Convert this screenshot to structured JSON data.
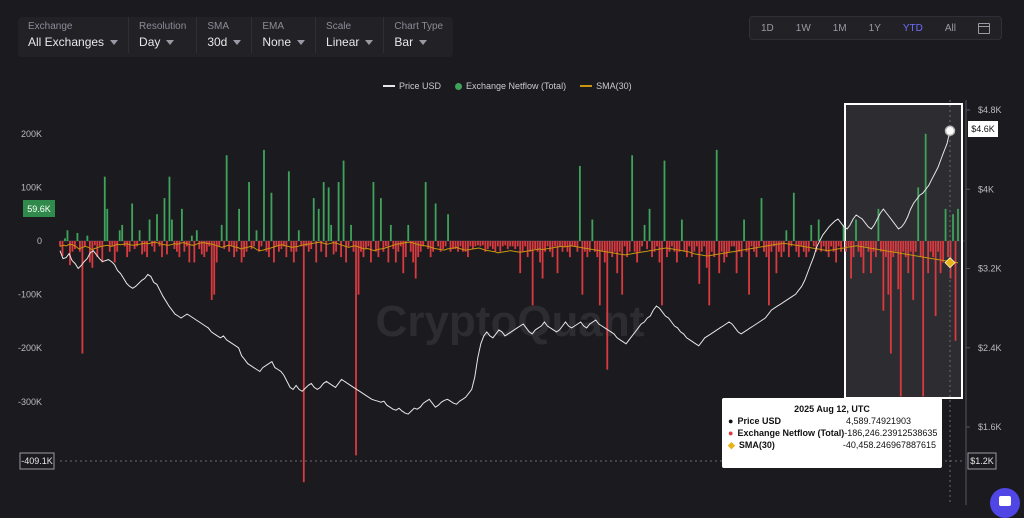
{
  "toolbar": {
    "controls": [
      {
        "label": "Exchange",
        "value": "All Exchanges"
      },
      {
        "label": "Resolution",
        "value": "Day"
      },
      {
        "label": "SMA",
        "value": "30d"
      },
      {
        "label": "EMA",
        "value": "None"
      },
      {
        "label": "Scale",
        "value": "Linear"
      },
      {
        "label": "Chart Type",
        "value": "Bar"
      }
    ],
    "ranges": [
      "1D",
      "1W",
      "1M",
      "1Y",
      "YTD",
      "All"
    ],
    "active_range": "YTD"
  },
  "legend": {
    "price": "Price USD",
    "netflow": "Exchange Netflow (Total)",
    "sma": "SMA(30)"
  },
  "watermark": "CryptoQuant",
  "colors": {
    "price": "#e6e6e6",
    "inflow": "#3fa35b",
    "outflow": "#d93a3f",
    "sma": "#c9950f",
    "background": "#1b1b1f",
    "active": "#6f6cff"
  },
  "tooltip": {
    "date": "2025 Aug 12, UTC",
    "rows": [
      {
        "name": "Price USD",
        "value": "4,589.74921903"
      },
      {
        "name": "Exchange Netflow (Total)",
        "value": "-186,246.23912538635"
      },
      {
        "name": "SMA(30)",
        "value": "-40,458.246967887615"
      }
    ]
  },
  "chart_data": {
    "type": "bar",
    "left_axis": {
      "ticks": [
        "200K",
        "100K",
        "0",
        "-100K",
        "-200K",
        "-300K"
      ],
      "tick_values": [
        200000,
        100000,
        0,
        -100000,
        -200000,
        -300000
      ],
      "range": [
        -460000,
        240000
      ]
    },
    "right_axis": {
      "ticks": [
        "$4.8K",
        "$4K",
        "$3.2K",
        "$2.4K",
        "$1.6K"
      ],
      "tick_values": [
        4800,
        4000,
        3200,
        2400,
        1600
      ],
      "range": [
        1150,
        4800
      ]
    },
    "crosshair_labels": {
      "left_value": "59.6K",
      "left_bottom": "-409.1K",
      "right_top": "$4.6K",
      "right_bottom": "$1.2K"
    },
    "netflow": [
      -10000,
      -28000,
      5000,
      20000,
      -45000,
      -20000,
      -15000,
      15000,
      -20000,
      -210000,
      -10000,
      10000,
      -40000,
      -50000,
      -8000,
      -30000,
      -10000,
      -40000,
      120000,
      60000,
      -20000,
      -10000,
      -40000,
      -20000,
      20000,
      30000,
      -10000,
      -30000,
      -20000,
      70000,
      -15000,
      -10000,
      20000,
      -25000,
      -20000,
      -30000,
      40000,
      -10000,
      -20000,
      50000,
      -10000,
      -30000,
      80000,
      -25000,
      120000,
      40000,
      -15000,
      -20000,
      -30000,
      60000,
      -20000,
      -10000,
      -40000,
      10000,
      -40000,
      20000,
      -15000,
      -25000,
      -30000,
      -20000,
      -10000,
      -110000,
      -100000,
      -40000,
      -10000,
      30000,
      -15000,
      160000,
      -20000,
      -10000,
      -30000,
      -20000,
      60000,
      -40000,
      -30000,
      -20000,
      110000,
      -15000,
      -10000,
      20000,
      -20000,
      -10000,
      170000,
      -20000,
      -30000,
      90000,
      -40000,
      -10000,
      -20000,
      -15000,
      -10000,
      -30000,
      130000,
      -20000,
      -40000,
      -20000,
      20000,
      -10000,
      -450000,
      -10000,
      -20000,
      -15000,
      80000,
      -40000,
      60000,
      -20000,
      110000,
      -30000,
      100000,
      30000,
      -25000,
      -20000,
      110000,
      -30000,
      150000,
      -40000,
      -10000,
      30000,
      -20000,
      -400000,
      -100000,
      -20000,
      -30000,
      -15000,
      -10000,
      -40000,
      110000,
      -20000,
      -30000,
      80000,
      -20000,
      -10000,
      -40000,
      30000,
      -15000,
      -40000,
      -20000,
      -10000,
      -60000,
      -30000,
      30000,
      -20000,
      -40000,
      -70000,
      -30000,
      -20000,
      -10000,
      110000,
      -15000,
      -30000,
      -20000,
      70000,
      -10000,
      -20000,
      -15000,
      -10000,
      50000,
      -20000,
      -15000,
      -15000,
      -20000,
      -10000,
      -20000,
      -20000,
      -30000,
      -10000,
      -15000,
      -10000,
      -8000,
      -10000,
      -8000,
      -20000,
      -15000,
      -10000,
      -15000,
      -20000,
      -10000,
      -20000,
      -10000,
      -8000,
      -15000,
      -10000,
      -10000,
      -15000,
      -10000,
      -60000,
      -20000,
      -10000,
      -30000,
      -20000,
      -120000,
      -15000,
      -20000,
      -40000,
      -70000,
      -20000,
      -10000,
      -20000,
      -30000,
      -10000,
      -60000,
      -10000,
      -20000,
      -10000,
      -20000,
      -30000,
      -10000,
      -10000,
      -20000,
      140000,
      -100000,
      -20000,
      -30000,
      -20000,
      40000,
      -20000,
      -30000,
      -120000,
      -20000,
      -40000,
      -240000,
      -20000,
      -30000,
      -20000,
      -60000,
      -20000,
      -100000,
      -10000,
      -30000,
      -20000,
      160000,
      -20000,
      -40000,
      -20000,
      -10000,
      30000,
      -15000,
      60000,
      -30000,
      -20000,
      -10000,
      -40000,
      -120000,
      150000,
      -30000,
      -20000,
      -10000,
      -20000,
      -40000,
      -20000,
      40000,
      -20000,
      -30000,
      -10000,
      -30000,
      -20000,
      -10000,
      -80000,
      -20000,
      -10000,
      -50000,
      -120000,
      -20000,
      -30000,
      170000,
      -60000,
      -20000,
      -40000,
      -30000,
      -20000,
      -10000,
      -10000,
      -60000,
      -20000,
      -30000,
      40000,
      -20000,
      -100000,
      -10000,
      -20000,
      -30000,
      -10000,
      80000,
      -20000,
      -30000,
      -120000,
      -20000,
      -10000,
      -60000,
      -20000,
      -30000,
      -20000,
      20000,
      -30000,
      -10000,
      90000,
      -20000,
      -30000,
      -10000,
      -20000,
      -30000,
      -20000,
      30000,
      -10000,
      -20000,
      40000,
      -20000,
      -10000,
      -20000,
      -30000,
      -10000,
      -20000,
      -40000,
      -10000,
      -20000,
      30000,
      -20000,
      -10000,
      -70000,
      -30000,
      40000,
      -20000,
      -30000,
      -60000,
      -10000,
      -20000,
      -60000,
      -20000,
      -30000,
      60000,
      -20000,
      -130000,
      -30000,
      -100000,
      -210000,
      -30000,
      -20000,
      -90000,
      -290000,
      -20000,
      -30000,
      -60000,
      -20000,
      -110000,
      -20000,
      100000,
      -30000,
      -290000,
      200000,
      -60000,
      -20000,
      -30000,
      -140000,
      -20000,
      -60000,
      -40000,
      60000,
      -30000,
      -70000,
      50000,
      -186246,
      60000
    ],
    "sma": [
      -10000,
      -8000,
      -9000,
      -6000,
      -7000,
      -10000,
      -15000,
      -12000,
      -10000,
      -12000,
      -16000,
      -14000,
      -12000,
      -10000,
      -9000,
      -8000,
      -10000,
      -9000,
      -6000,
      -7000,
      -6000,
      -5000,
      -7000,
      -8000,
      -7000,
      -6000,
      -5000,
      -4000,
      -5000,
      -3000,
      -2000,
      -4000,
      -6000,
      -7000,
      -8000,
      -7000,
      -5000,
      -6000,
      -4000,
      -3000,
      -5000,
      -7000,
      -8000,
      -6000,
      -4000,
      -3000,
      -4000,
      -5000,
      -6000,
      -8000,
      -10000,
      -12000,
      -10000,
      -8000,
      -9000,
      -11000,
      -12000,
      -15000,
      -13000,
      -12000,
      -10000,
      -12000,
      -16000,
      -18000,
      -17000,
      -15000,
      -14000,
      -12000,
      -10000,
      -8000,
      -7000,
      -9000,
      -10000,
      -12000,
      -11000,
      -10000,
      -8000,
      -7000,
      -6000,
      -5000,
      -4000,
      -3000,
      -2000,
      -4000,
      -6000,
      -5000,
      -3000,
      -4000,
      -6000,
      -8000,
      -10000,
      -12000,
      -10000,
      -9000,
      -11000,
      -13000,
      -15000,
      -14000,
      -16000,
      -18000,
      -16000,
      -15000,
      -14000,
      -12000,
      -10000,
      -8000,
      -6000,
      -5000,
      -4000,
      -3000,
      -2000,
      -3000,
      -5000,
      -7000,
      -8000,
      -9000,
      -10000,
      -12000,
      -14000,
      -15000,
      -16000,
      -17000,
      -15000,
      -14000,
      -13000,
      -12000,
      -14000,
      -16000,
      -17000,
      -16000,
      -15000,
      -14000,
      -13000,
      -15000,
      -17000,
      -18000,
      -19000,
      -20000,
      -22000,
      -21000,
      -20000,
      -19000,
      -18000,
      -19000,
      -20000,
      -21000,
      -20000,
      -19000,
      -18000,
      -17000,
      -16000,
      -15000,
      -16000,
      -15000,
      -14000,
      -13000,
      -12000,
      -11000,
      -10000,
      -11000,
      -10000,
      -9000,
      -10000,
      -11000,
      -12000,
      -13000,
      -14000,
      -15000,
      -16000,
      -17000,
      -18000,
      -19000,
      -20000,
      -21000,
      -22000,
      -23000,
      -24000,
      -25000,
      -26000,
      -25000,
      -24000,
      -23000,
      -22000,
      -21000,
      -20000,
      -19000,
      -18000,
      -17000,
      -16000,
      -15000,
      -14000,
      -13000,
      -14000,
      -15000,
      -16000,
      -17000,
      -18000,
      -19000,
      -20000,
      -22000,
      -24000,
      -25000,
      -26000,
      -27000,
      -28000,
      -27000,
      -26000,
      -25000,
      -24000,
      -23000,
      -22000,
      -21000,
      -20000,
      -19000,
      -18000,
      -17000,
      -16000,
      -15000,
      -14000,
      -13000,
      -12000,
      -11000,
      -10000,
      -9000,
      -8000,
      -7000,
      -6000,
      -5000,
      -4000,
      -5000,
      -6000,
      -7000,
      -8000,
      -9000,
      -10000,
      -11000,
      -12000,
      -13000,
      -14000,
      -15000,
      -16000,
      -17000,
      -18000,
      -17000,
      -16000,
      -15000,
      -14000,
      -13000,
      -12000,
      -11000,
      -10000,
      -9000,
      -10000,
      -11000,
      -12000,
      -13000,
      -14000,
      -15000,
      -16000,
      -17000,
      -18000,
      -19000,
      -20000,
      -21000,
      -22000,
      -23000,
      -24000,
      -25000,
      -26000,
      -27000,
      -28000,
      -29000,
      -30000,
      -31000,
      -32000,
      -33000,
      -34000,
      -35000,
      -36000,
      -37000,
      -38000,
      -39000,
      -40000,
      -40458
    ],
    "price": [
      3380,
      3300,
      3310,
      3350,
      3280,
      3250,
      3200,
      3230,
      3270,
      3300,
      3360,
      3380,
      3340,
      3300,
      3270,
      3280,
      3290,
      3270,
      3240,
      3180,
      3150,
      3100,
      3050,
      3020,
      3000,
      3020,
      3050,
      3080,
      3100,
      3140,
      3120,
      3060,
      3040,
      2980,
      2920,
      2870,
      2820,
      2780,
      2740,
      2720,
      2700,
      2720,
      2740,
      2720,
      2700,
      2680,
      2660,
      2640,
      2620,
      2600,
      2560,
      2540,
      2520,
      2500,
      2520,
      2480,
      2460,
      2440,
      2420,
      2400,
      2320,
      2280,
      2240,
      2220,
      2200,
      2180,
      2160,
      2200,
      2220,
      2240,
      2260,
      2200,
      2180,
      2160,
      2120,
      2060,
      2000,
      1980,
      2020,
      1980,
      1960,
      1990,
      2020,
      2040,
      2000,
      1980,
      2000,
      2040,
      2060,
      2040,
      2020,
      2000,
      2040,
      2080,
      2060,
      2040,
      2020,
      2000,
      1980,
      1960,
      1940,
      1920,
      1900,
      1880,
      1870,
      1860,
      1850,
      1860,
      1820,
      1800,
      1780,
      1770,
      1790,
      1760,
      1740,
      1730,
      1760,
      1790,
      1780,
      1800,
      1840,
      1860,
      1880,
      1840,
      1800,
      1820,
      1850,
      1870,
      1880,
      1860,
      1840,
      1830,
      1860,
      1880,
      1900,
      1940,
      1980,
      2100,
      2300,
      2440,
      2520,
      2560,
      2520,
      2500,
      2540,
      2580,
      2560,
      2520,
      2540,
      2560,
      2580,
      2600,
      2620,
      2640,
      2600,
      2560,
      2540,
      2580,
      2600,
      2620,
      2660,
      2620,
      2600,
      2580,
      2560,
      2580,
      2620,
      2660,
      2620,
      2600,
      2620,
      2640,
      2660,
      2620,
      2600,
      2640,
      2660,
      2680,
      2640,
      2620,
      2600,
      2580,
      2560,
      2540,
      2500,
      2480,
      2460,
      2440,
      2480,
      2520,
      2560,
      2600,
      2640,
      2660,
      2700,
      2720,
      2780,
      2820,
      2800,
      2760,
      2720,
      2700,
      2660,
      2620,
      2600,
      2560,
      2540,
      2500,
      2480,
      2460,
      2440,
      2420,
      2460,
      2500,
      2520,
      2540,
      2560,
      2580,
      2600,
      2620,
      2640,
      2660,
      2640,
      2600,
      2560,
      2540,
      2560,
      2580,
      2600,
      2620,
      2640,
      2660,
      2680,
      2700,
      2740,
      2780,
      2800,
      2820,
      2840,
      2860,
      2880,
      2900,
      2920,
      2940,
      2980,
      3020,
      3080,
      3160,
      3240,
      3320,
      3420,
      3480,
      3540,
      3580,
      3620,
      3650,
      3680,
      3700,
      3660,
      3620,
      3600,
      3640,
      3700,
      3740,
      3720,
      3700,
      3660,
      3620,
      3600,
      3640,
      3700,
      3760,
      3800,
      3760,
      3720,
      3680,
      3640,
      3600,
      3620,
      3660,
      3720,
      3800,
      3860,
      3900,
      3940,
      3960,
      4000,
      4040,
      4100,
      4160,
      4220,
      4300,
      4380,
      4460,
      4589.75
    ]
  }
}
